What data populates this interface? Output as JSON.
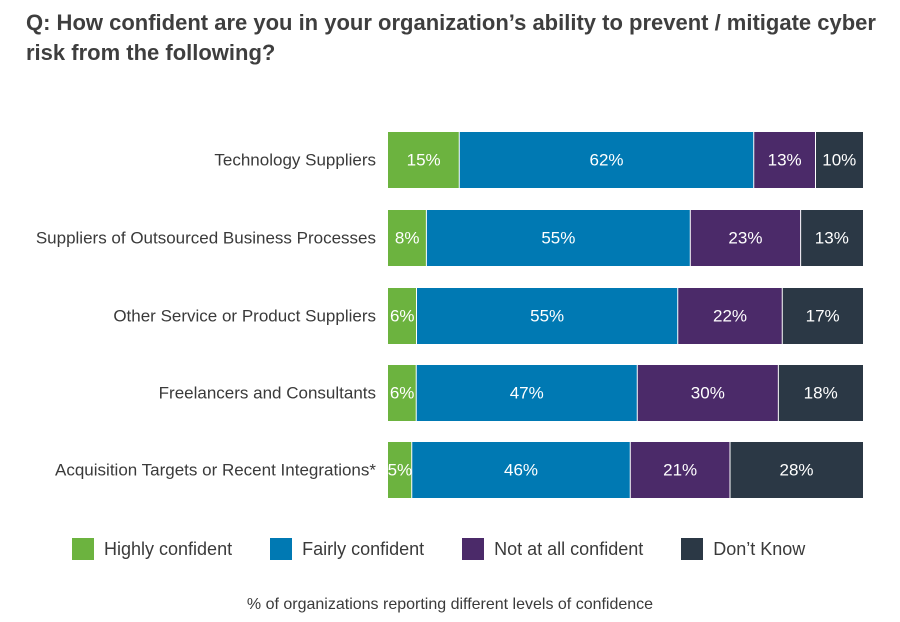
{
  "chart_data": {
    "type": "bar",
    "orientation": "horizontal",
    "stacked": true,
    "title": "Q: How confident are you in your organization’s ability to prevent / mitigate cyber risk from the following?",
    "footnote": "% of organizations reporting different levels of confidence",
    "categories": [
      "Technology Suppliers",
      "Suppliers of Outsourced Business Processes",
      "Other Service or Product Suppliers",
      "Freelancers and Consultants",
      "Acquisition Targets or Recent Integrations*"
    ],
    "series": [
      {
        "name": "Highly confident",
        "color": "#6cb33f",
        "values": [
          15,
          8,
          6,
          6,
          5
        ]
      },
      {
        "name": "Fairly confident",
        "color": "#0079b3",
        "values": [
          62,
          55,
          55,
          47,
          46
        ]
      },
      {
        "name": "Not at all confident",
        "color": "#4b2a69",
        "values": [
          13,
          23,
          22,
          30,
          21
        ]
      },
      {
        "name": "Don’t Know",
        "color": "#2b3845",
        "values": [
          10,
          13,
          17,
          18,
          28
        ]
      }
    ],
    "value_suffix": "%",
    "legend_position": "bottom"
  }
}
